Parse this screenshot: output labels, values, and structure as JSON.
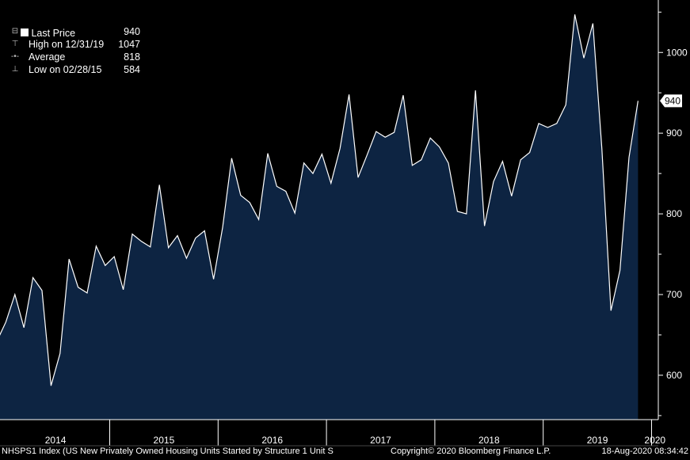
{
  "legend": {
    "last_price": {
      "label": "Last Price",
      "value": "940"
    },
    "high": {
      "label": "High on 12/31/19",
      "value": "1047"
    },
    "average": {
      "label": "Average",
      "value": "818"
    },
    "low": {
      "label": "Low on 02/28/15",
      "value": "584"
    }
  },
  "last_price_tag": "940",
  "footer": {
    "left": "NHSPS1 Index (US New Privately Owned Housing Units Started by Structure 1 Unit S",
    "center": "Copyright© 2020 Bloomberg Finance L.P.",
    "right": "18-Aug-2020 08:34:42"
  },
  "colors": {
    "background": "#000000",
    "area_fill": "#0d2442",
    "line": "#ffffff"
  },
  "chart_data": {
    "type": "area",
    "y_axis_position": "right",
    "ylim": [
      545,
      1065
    ],
    "y_ticks": [
      600,
      700,
      800,
      900,
      1000
    ],
    "x_labels": [
      "2014",
      "2015",
      "2016",
      "2017",
      "2018",
      "2019",
      "2020"
    ],
    "x_start": "2013-12",
    "series": [
      {
        "values": [
          642,
          666,
          700,
          659,
          721,
          705,
          587,
          627,
          744,
          709,
          702,
          760,
          736,
          747,
          706,
          775,
          766,
          759,
          836,
          758,
          773,
          745,
          770,
          779,
          719,
          783,
          869,
          823,
          814,
          793,
          875,
          834,
          828,
          801,
          863,
          850,
          874,
          838,
          881,
          948,
          845,
          873,
          902,
          895,
          901,
          947,
          860,
          867,
          894,
          883,
          863,
          803,
          800,
          953,
          785,
          840,
          865,
          822,
          867,
          876,
          912,
          907,
          912,
          935,
          1047,
          993,
          1036,
          880,
          680,
          730,
          870,
          940
        ]
      }
    ]
  }
}
